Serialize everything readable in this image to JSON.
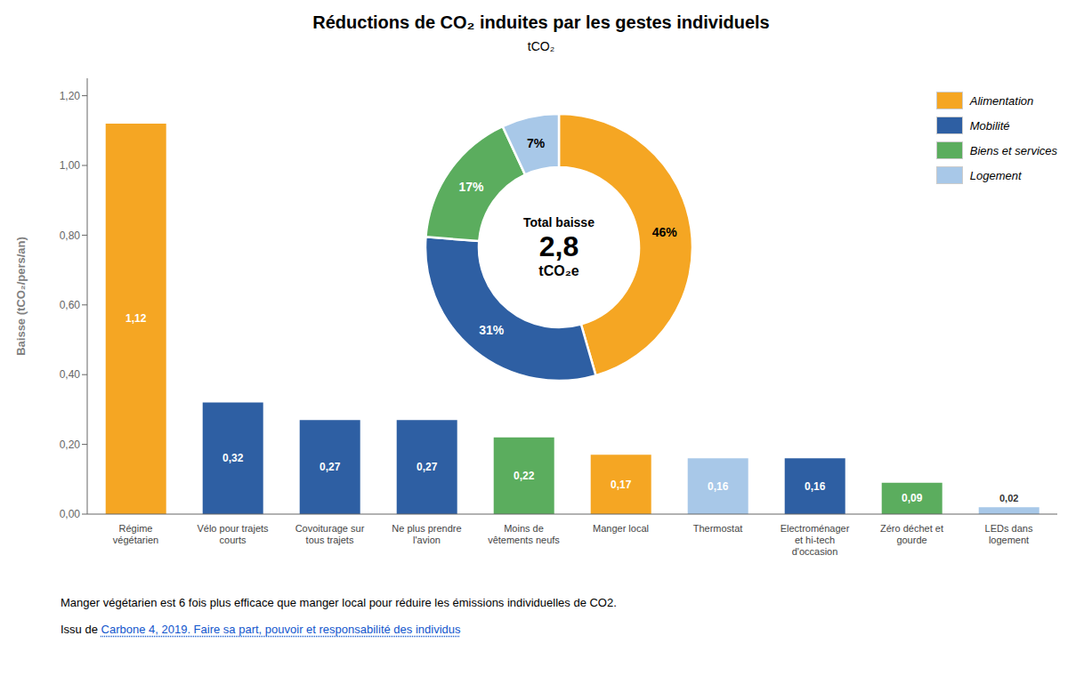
{
  "chart_data": [
    {
      "type": "bar",
      "title": "Réductions de CO₂ induites par les gestes individuels",
      "subtitle": "tCO₂",
      "categories": [
        "Régime\nvégétarien",
        "Vélo pour trajets\ncourts",
        "Covoiturage sur\ntous trajets",
        "Ne plus prendre\nl'avion",
        "Moins de\nvêtements neufs",
        "Manger local",
        "Thermostat",
        "Electroménager\net hi-tech\nd'occasion",
        "Zéro déchet et\ngourde",
        "LEDs dans\nlogement"
      ],
      "values": [
        1.12,
        0.32,
        0.27,
        0.27,
        0.22,
        0.17,
        0.16,
        0.16,
        0.09,
        0.02
      ],
      "value_labels": [
        "1,12",
        "0,32",
        "0,27",
        "0,27",
        "0,22",
        "0,17",
        "0,16",
        "0,16",
        "0,09",
        "0,02"
      ],
      "data_labels": true,
      "colors": [
        "#F5A623",
        "#2E5FA3",
        "#2E5FA3",
        "#2E5FA3",
        "#5BAD5E",
        "#F5A623",
        "#A8C8E8",
        "#2E5FA3",
        "#5BAD5E",
        "#A8C8E8"
      ],
      "ylabel": "Baisse (tCO₂/pers/an)",
      "ylim": [
        0,
        1.25
      ],
      "yticks": [
        {
          "value": 0.0,
          "label": "0,00"
        },
        {
          "value": 0.2,
          "label": "0,20"
        },
        {
          "value": 0.4,
          "label": "0,40"
        },
        {
          "value": 0.6,
          "label": "0,60"
        },
        {
          "value": 0.8,
          "label": "0,80"
        },
        {
          "value": 1.0,
          "label": "1,00"
        },
        {
          "value": 1.2,
          "label": "1,20"
        }
      ],
      "grid": false,
      "annotations": [
        {
          "text": "Manger végétarien est 6 fois plus efficace que manger local pour réduire les émissions individuelles de CO2."
        },
        {
          "text": "Issu de"
        },
        {
          "text": "Carbone 4, 2019. Faire sa part, pouvoir et responsabilité des individus",
          "color": "#1155CC"
        }
      ]
    },
    {
      "type": "pie",
      "categories": [
        "Alimentation",
        "Mobilité",
        "Biens et services",
        "Logement"
      ],
      "values": [
        46,
        31,
        17,
        7
      ],
      "value_labels": [
        "46%",
        "31%",
        "17%",
        "7%"
      ],
      "data_labels": true,
      "colors": [
        "#F5A623",
        "#2E5FA3",
        "#5BAD5E",
        "#A8C8E8"
      ],
      "legend": "upper right",
      "annotations": [
        "Total baisse",
        "2,8",
        "tCO₂e"
      ]
    }
  ]
}
